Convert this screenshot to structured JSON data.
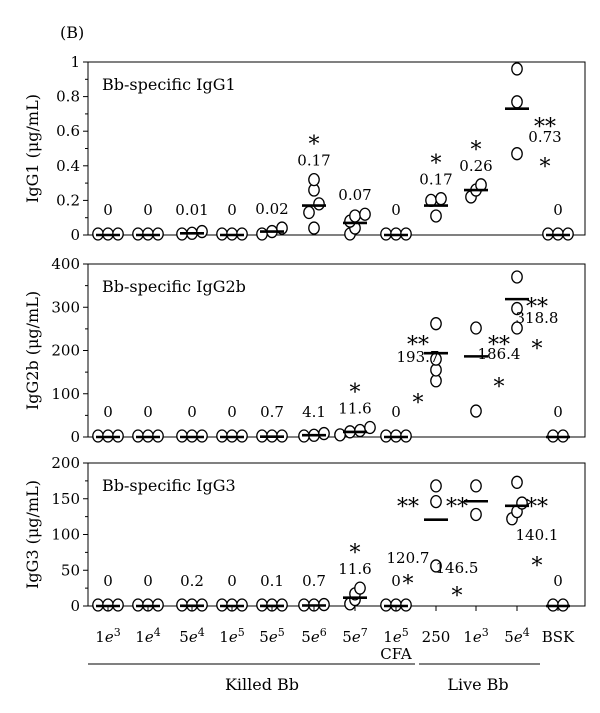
{
  "figure_label": "(B)",
  "chart_data": [
    {
      "type": "scatter",
      "title": "Bb-specific IgG1",
      "ylabel": "IgG1 (μg/mL)",
      "ylim": [
        0,
        1
      ],
      "yticks": [
        0,
        0.2,
        0.4,
        0.6,
        0.8,
        1
      ],
      "ytick_labels": [
        "0",
        "0.2",
        "0.4",
        "0.6",
        "0.8",
        "1"
      ],
      "groups": [
        {
          "points": [
            0,
            0,
            0
          ],
          "mean": 0,
          "mean_label": "0",
          "stars": ""
        },
        {
          "points": [
            0,
            0,
            0
          ],
          "mean": 0,
          "mean_label": "0",
          "stars": ""
        },
        {
          "points": [
            0,
            0.01,
            0.02
          ],
          "mean": 0.01,
          "mean_label": "0.01",
          "stars": ""
        },
        {
          "points": [
            0,
            0,
            0
          ],
          "mean": 0,
          "mean_label": "0",
          "stars": ""
        },
        {
          "points": [
            0,
            0.02,
            0.04
          ],
          "mean": 0.02,
          "mean_label": "0.02",
          "stars": ""
        },
        {
          "points": [
            0.04,
            0.13,
            0.18,
            0.26,
            0.32
          ],
          "mean": 0.17,
          "mean_label": "0.17",
          "stars": "*"
        },
        {
          "points": [
            0,
            0.04,
            0.08,
            0.11,
            0.12
          ],
          "mean": 0.07,
          "mean_label": "0.07",
          "stars": ""
        },
        {
          "points": [
            0,
            0,
            0
          ],
          "mean": 0,
          "mean_label": "0",
          "stars": ""
        },
        {
          "points": [
            0.11,
            0.2,
            0.21
          ],
          "mean": 0.17,
          "mean_label": "0.17",
          "stars": "*"
        },
        {
          "points": [
            0.22,
            0.26,
            0.29
          ],
          "mean": 0.26,
          "mean_label": "0.26",
          "stars": "*"
        },
        {
          "points": [
            0.47,
            0.77,
            0.96
          ],
          "mean": 0.73,
          "mean_label": "",
          "stars": ""
        },
        {
          "points": [
            0,
            0,
            0
          ],
          "mean": 0,
          "mean_label": "0",
          "stars": ""
        }
      ],
      "annotations": [
        {
          "text": "0.73",
          "stars_above": "**",
          "stars_below": "*"
        }
      ]
    },
    {
      "type": "scatter",
      "title": "Bb-specific IgG2b",
      "ylabel": "IgG2b (μg/mL)",
      "ylim": [
        0,
        400
      ],
      "yticks": [
        0,
        100,
        200,
        300,
        400
      ],
      "ytick_labels": [
        "0",
        "100",
        "200",
        "300",
        "400"
      ],
      "groups": [
        {
          "points": [
            0,
            0,
            0
          ],
          "mean": 0,
          "mean_label": "0",
          "stars": ""
        },
        {
          "points": [
            0,
            0,
            0
          ],
          "mean": 0,
          "mean_label": "0",
          "stars": ""
        },
        {
          "points": [
            0,
            0,
            0
          ],
          "mean": 0,
          "mean_label": "0",
          "stars": ""
        },
        {
          "points": [
            0,
            0,
            0
          ],
          "mean": 0,
          "mean_label": "0",
          "stars": ""
        },
        {
          "points": [
            0,
            0,
            2
          ],
          "mean": 0.7,
          "mean_label": "0.7",
          "stars": ""
        },
        {
          "points": [
            0,
            4,
            8
          ],
          "mean": 4.1,
          "mean_label": "4.1",
          "stars": ""
        },
        {
          "points": [
            5,
            12,
            15,
            22
          ],
          "mean": 11.6,
          "mean_label": "11.6",
          "stars": "*"
        },
        {
          "points": [
            0,
            0,
            0
          ],
          "mean": 0,
          "mean_label": "0",
          "stars": ""
        },
        {
          "points": [
            130,
            155,
            180,
            262
          ],
          "mean": 193.7,
          "mean_label": "",
          "stars": ""
        },
        {
          "points": [
            60,
            252
          ],
          "mean": 186.4,
          "mean_label": "",
          "stars": ""
        },
        {
          "points": [
            252,
            297,
            370
          ],
          "mean": 318.8,
          "mean_label": "",
          "stars": ""
        },
        {
          "points": [
            0,
            0
          ],
          "mean": 0,
          "mean_label": "0",
          "stars": ""
        }
      ],
      "annotations": [
        {
          "text": "193.7",
          "stars_above": "**",
          "stars_below": "*"
        },
        {
          "text": "186.4",
          "stars_above": "**",
          "stars_below": "*"
        },
        {
          "text": "318.8",
          "stars_above": "**",
          "stars_below": "*"
        }
      ]
    },
    {
      "type": "scatter",
      "title": "Bb-specific IgG3",
      "ylabel": "IgG3 (μg/mL)",
      "ylim": [
        0,
        200
      ],
      "yticks": [
        0,
        50,
        100,
        150,
        200
      ],
      "ytick_labels": [
        "0",
        "50",
        "100",
        "150",
        "200"
      ],
      "groups": [
        {
          "points": [
            0,
            0,
            0
          ],
          "mean": 0,
          "mean_label": "0",
          "stars": ""
        },
        {
          "points": [
            0,
            0,
            0
          ],
          "mean": 0,
          "mean_label": "0",
          "stars": ""
        },
        {
          "points": [
            0,
            0,
            0
          ],
          "mean": 0.2,
          "mean_label": "0.2",
          "stars": ""
        },
        {
          "points": [
            0,
            0,
            0
          ],
          "mean": 0,
          "mean_label": "0",
          "stars": ""
        },
        {
          "points": [
            0,
            0,
            0
          ],
          "mean": 0.1,
          "mean_label": "0.1",
          "stars": ""
        },
        {
          "points": [
            0,
            0,
            2
          ],
          "mean": 0.7,
          "mean_label": "0.7",
          "stars": ""
        },
        {
          "points": [
            3,
            9,
            17,
            25
          ],
          "mean": 11.6,
          "mean_label": "11.6",
          "stars": "*"
        },
        {
          "points": [
            0,
            0,
            0
          ],
          "mean": 0,
          "mean_label": "0",
          "stars": ""
        },
        {
          "points": [
            56,
            146,
            168
          ],
          "mean": 120.7,
          "mean_label": "",
          "stars": ""
        },
        {
          "points": [
            128,
            168
          ],
          "mean": 146.5,
          "mean_label": "",
          "stars": ""
        },
        {
          "points": [
            122,
            132,
            144,
            173
          ],
          "mean": 140.1,
          "mean_label": "",
          "stars": ""
        },
        {
          "points": [
            0,
            0
          ],
          "mean": 0,
          "mean_label": "0",
          "stars": ""
        }
      ],
      "annotations": [
        {
          "text": "120.7",
          "stars_above": "**",
          "stars_below": "*"
        },
        {
          "text": "146.5",
          "stars_above": "**",
          "stars_below": "*"
        },
        {
          "text": "140.1",
          "stars_above": "**",
          "stars_below": "*"
        }
      ]
    }
  ],
  "x_categories": [
    {
      "base": "1",
      "exp": "3",
      "sub": ""
    },
    {
      "base": "1",
      "exp": "4",
      "sub": ""
    },
    {
      "base": "5",
      "exp": "4",
      "sub": ""
    },
    {
      "base": "1",
      "exp": "5",
      "sub": ""
    },
    {
      "base": "5",
      "exp": "5",
      "sub": ""
    },
    {
      "base": "5",
      "exp": "6",
      "sub": ""
    },
    {
      "base": "5",
      "exp": "7",
      "sub": ""
    },
    {
      "base": "1",
      "exp": "5",
      "sub": "CFA"
    },
    {
      "base": "250",
      "exp": "",
      "sub": ""
    },
    {
      "base": "1",
      "exp": "3",
      "sub": ""
    },
    {
      "base": "5",
      "exp": "4",
      "sub": ""
    },
    {
      "base": "BSK",
      "exp": "",
      "sub": ""
    }
  ],
  "x_groups": [
    "Killed Bb",
    "Live Bb"
  ]
}
